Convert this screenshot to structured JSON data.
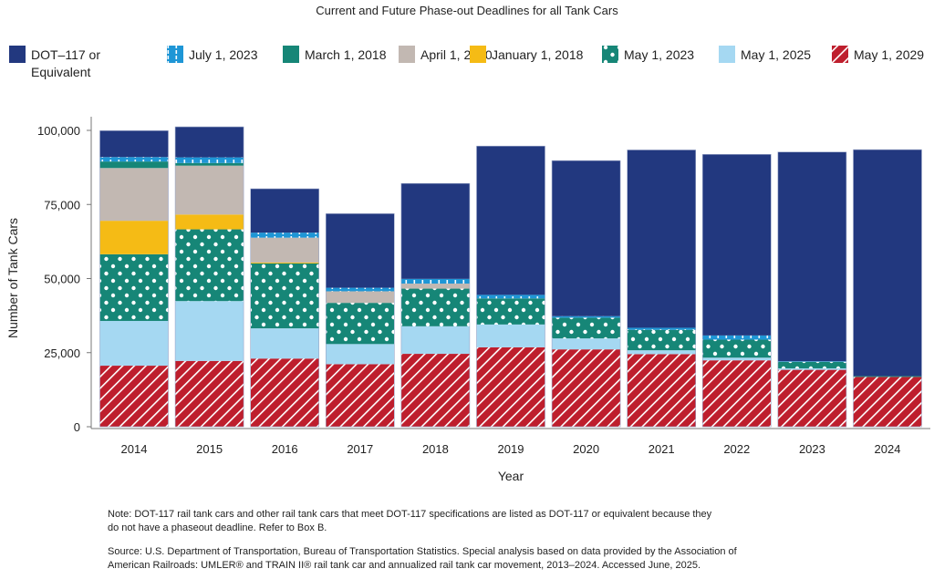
{
  "chart_data": {
    "type": "bar",
    "stacked": true,
    "title": "Current and Future Phase-out Deadlines for all Tank Cars",
    "xlabel": "Year",
    "ylabel": "Number of Tank Cars",
    "ylim": [
      0,
      100000
    ],
    "yticks": [
      0,
      25000,
      50000,
      75000,
      100000
    ],
    "ytick_labels": [
      "0",
      "25,000",
      "50,000",
      "75,000",
      "100,000"
    ],
    "grid": false,
    "legend_position": "top",
    "categories": [
      "2014",
      "2015",
      "2016",
      "2017",
      "2018",
      "2019",
      "2020",
      "2021",
      "2022",
      "2023",
      "2024"
    ],
    "series": [
      {
        "name": "May 1, 2029",
        "color": "#be1e2d",
        "pattern": "diagonal-lines",
        "values": [
          20600,
          22200,
          23000,
          21100,
          24600,
          26800,
          26100,
          24500,
          22400,
          19200,
          16800
        ]
      },
      {
        "name": "May 1, 2025",
        "color": "#a5d8f2",
        "pattern": "solid",
        "values": [
          15100,
          20200,
          10200,
          6800,
          9300,
          7700,
          3700,
          1300,
          900,
          500,
          0
        ]
      },
      {
        "name": "May 1, 2023",
        "color": "#168677",
        "pattern": "dots",
        "values": [
          22500,
          24200,
          21900,
          13900,
          12700,
          8800,
          7000,
          6900,
          6100,
          2200,
          0
        ]
      },
      {
        "name": "January 1, 2018",
        "color": "#f5bb15",
        "pattern": "solid",
        "values": [
          11300,
          5000,
          300,
          0,
          0,
          0,
          0,
          0,
          0,
          0,
          0
        ]
      },
      {
        "name": "April 1, 2020",
        "color": "#c2b8b2",
        "pattern": "solid",
        "values": [
          17800,
          16500,
          8400,
          3900,
          1700,
          0,
          0,
          0,
          0,
          0,
          0
        ]
      },
      {
        "name": "March 1, 2018",
        "color": "#168677",
        "pattern": "solid",
        "values": [
          2200,
          900,
          0,
          0,
          0,
          0,
          0,
          0,
          0,
          0,
          300
        ]
      },
      {
        "name": "July 1, 2023",
        "color": "#1e96d6",
        "pattern": "vertical-dashes",
        "values": [
          1500,
          1900,
          1700,
          1200,
          1600,
          1200,
          500,
          700,
          1400,
          200,
          0
        ]
      },
      {
        "name": "DOT–117 or Equivalent",
        "color": "#22387f",
        "pattern": "solid",
        "values": [
          8900,
          10300,
          14800,
          25000,
          32200,
          50200,
          52500,
          60000,
          61100,
          70600,
          76400
        ]
      }
    ],
    "legend": [
      {
        "label_lines": [
          "DOT–117 or",
          "Equivalent"
        ],
        "series": 7
      },
      {
        "label_lines": [
          "July 1, 2023"
        ],
        "series": 6
      },
      {
        "label_lines": [
          "March 1, 2018"
        ],
        "series": 5
      },
      {
        "label_lines": [
          "April 1, 2020"
        ],
        "series": 4
      },
      {
        "label_lines": [
          "January 1, 2018"
        ],
        "series": 3
      },
      {
        "label_lines": [
          "May 1, 2023"
        ],
        "series": 2
      },
      {
        "label_lines": [
          "May 1, 2025"
        ],
        "series": 1
      },
      {
        "label_lines": [
          "May 1, 2029"
        ],
        "series": 0
      }
    ]
  },
  "notes": {
    "note_lines": [
      "Note: DOT-117 rail tank cars and other rail tank cars that meet DOT-117 specifications are listed as DOT-117 or equivalent because they",
      "do not have a phaseout deadline. Refer to Box B."
    ],
    "source_lines": [
      "Source: U.S. Department of Transportation, Bureau of Transportation Statistics. Special analysis based on data provided by the Association of",
      "American Railroads: UMLER® and TRAIN II® rail tank car and annualized rail tank car movement, 2013–2024. Accessed June, 2025."
    ]
  }
}
